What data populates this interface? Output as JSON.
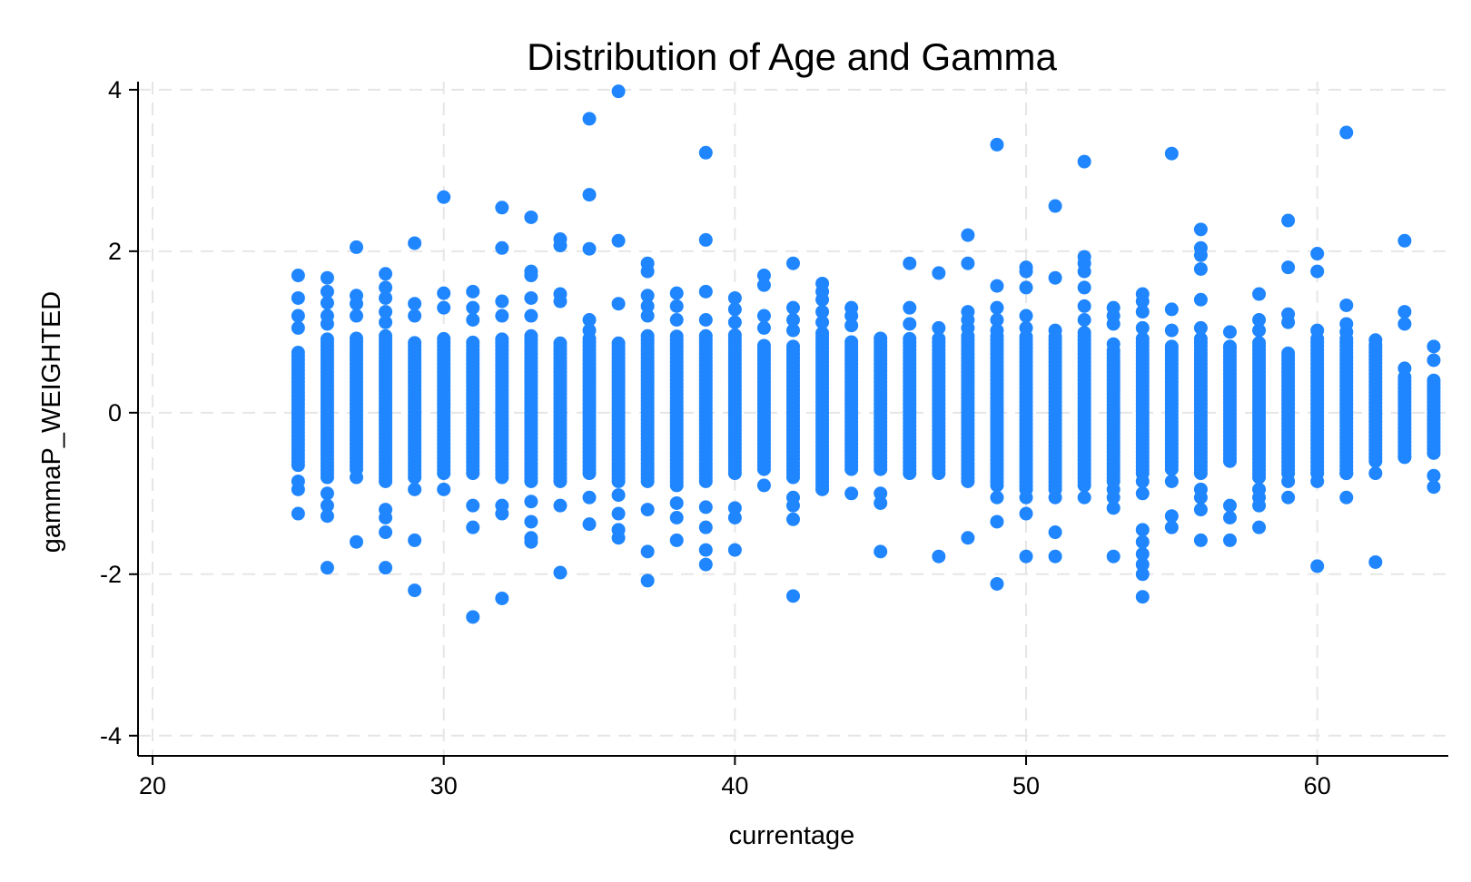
{
  "chart_data": {
    "type": "scatter",
    "title": "Distribution of Age and Gamma",
    "xlabel": "currentage",
    "ylabel": "gammaP_WEIGHTED",
    "xlim": [
      19.5,
      64.5
    ],
    "ylim": [
      -4.25,
      4.1
    ],
    "xticks": [
      20,
      30,
      40,
      50,
      60
    ],
    "yticks": [
      -4,
      -2,
      0,
      2,
      4
    ],
    "grid": true,
    "marker_color": "#1f86ff",
    "ages": [
      25,
      26,
      27,
      28,
      29,
      30,
      31,
      32,
      33,
      34,
      35,
      36,
      37,
      38,
      39,
      40,
      41,
      42,
      43,
      44,
      45,
      46,
      47,
      48,
      49,
      50,
      51,
      52,
      53,
      54,
      55,
      56,
      57,
      58,
      59,
      60,
      61,
      62,
      63,
      64
    ],
    "dense_ranges": [
      [
        -0.65,
        0.75
      ],
      [
        -0.8,
        0.95
      ],
      [
        -0.7,
        0.95
      ],
      [
        -0.85,
        0.95
      ],
      [
        -0.8,
        0.9
      ],
      [
        -0.75,
        0.95
      ],
      [
        -0.75,
        0.9
      ],
      [
        -0.8,
        0.95
      ],
      [
        -0.85,
        0.95
      ],
      [
        -0.85,
        0.9
      ],
      [
        -0.75,
        0.95
      ],
      [
        -0.85,
        0.9
      ],
      [
        -0.85,
        0.95
      ],
      [
        -0.9,
        0.95
      ],
      [
        -0.85,
        0.95
      ],
      [
        -0.75,
        1.0
      ],
      [
        -0.7,
        0.85
      ],
      [
        -0.8,
        0.85
      ],
      [
        -0.95,
        1.0
      ],
      [
        -0.7,
        0.9
      ],
      [
        -0.7,
        0.95
      ],
      [
        -0.75,
        0.95
      ],
      [
        -0.75,
        0.95
      ],
      [
        -0.85,
        0.95
      ],
      [
        -0.9,
        0.95
      ],
      [
        -0.95,
        0.95
      ],
      [
        -0.95,
        0.95
      ],
      [
        -0.9,
        1.0
      ],
      [
        -0.85,
        0.8
      ],
      [
        -0.75,
        0.95
      ],
      [
        -0.7,
        0.8
      ],
      [
        -0.75,
        0.95
      ],
      [
        -0.6,
        0.8
      ],
      [
        -0.8,
        0.9
      ],
      [
        -0.75,
        0.75
      ],
      [
        -0.75,
        0.95
      ],
      [
        -0.75,
        0.95
      ],
      [
        -0.6,
        0.85
      ],
      [
        -0.55,
        0.45
      ],
      [
        -0.5,
        0.4
      ]
    ],
    "outliers": [
      [
        25,
        1.7
      ],
      [
        25,
        1.42
      ],
      [
        25,
        1.2
      ],
      [
        25,
        1.05
      ],
      [
        25,
        -0.85
      ],
      [
        25,
        -0.95
      ],
      [
        25,
        -1.25
      ],
      [
        26,
        1.67
      ],
      [
        26,
        1.5
      ],
      [
        26,
        1.36
      ],
      [
        26,
        1.2
      ],
      [
        26,
        1.1
      ],
      [
        26,
        -1.0
      ],
      [
        26,
        -1.15
      ],
      [
        26,
        -1.28
      ],
      [
        26,
        -1.92
      ],
      [
        27,
        2.05
      ],
      [
        27,
        1.45
      ],
      [
        27,
        1.35
      ],
      [
        27,
        1.2
      ],
      [
        27,
        -0.8
      ],
      [
        27,
        -1.6
      ],
      [
        28,
        1.72
      ],
      [
        28,
        1.55
      ],
      [
        28,
        1.42
      ],
      [
        28,
        1.25
      ],
      [
        28,
        1.12
      ],
      [
        28,
        -1.2
      ],
      [
        28,
        -1.3
      ],
      [
        28,
        -1.48
      ],
      [
        28,
        -1.92
      ],
      [
        29,
        2.1
      ],
      [
        29,
        1.35
      ],
      [
        29,
        1.2
      ],
      [
        29,
        -0.95
      ],
      [
        29,
        -1.58
      ],
      [
        29,
        -2.2
      ],
      [
        30,
        2.67
      ],
      [
        30,
        1.48
      ],
      [
        30,
        1.3
      ],
      [
        30,
        -0.95
      ],
      [
        31,
        1.5
      ],
      [
        31,
        1.3
      ],
      [
        31,
        1.15
      ],
      [
        31,
        -1.15
      ],
      [
        31,
        -1.42
      ],
      [
        31,
        -2.53
      ],
      [
        32,
        2.54
      ],
      [
        32,
        2.04
      ],
      [
        32,
        1.38
      ],
      [
        32,
        1.2
      ],
      [
        32,
        -1.15
      ],
      [
        32,
        -1.25
      ],
      [
        32,
        -2.3
      ],
      [
        33,
        2.42
      ],
      [
        33,
        1.75
      ],
      [
        33,
        1.7
      ],
      [
        33,
        1.42
      ],
      [
        33,
        1.2
      ],
      [
        33,
        -1.1
      ],
      [
        33,
        -1.35
      ],
      [
        33,
        -1.55
      ],
      [
        33,
        -1.6
      ],
      [
        34,
        2.15
      ],
      [
        34,
        2.07
      ],
      [
        34,
        1.47
      ],
      [
        34,
        1.38
      ],
      [
        34,
        -1.15
      ],
      [
        34,
        -1.98
      ],
      [
        35,
        3.64
      ],
      [
        35,
        2.7
      ],
      [
        35,
        2.03
      ],
      [
        35,
        1.15
      ],
      [
        35,
        1.02
      ],
      [
        35,
        -1.05
      ],
      [
        35,
        -1.38
      ],
      [
        36,
        3.98
      ],
      [
        36,
        2.13
      ],
      [
        36,
        1.35
      ],
      [
        36,
        -1.02
      ],
      [
        36,
        -1.25
      ],
      [
        36,
        -1.45
      ],
      [
        36,
        -1.55
      ],
      [
        37,
        1.85
      ],
      [
        37,
        1.75
      ],
      [
        37,
        1.45
      ],
      [
        37,
        1.32
      ],
      [
        37,
        1.2
      ],
      [
        37,
        -1.2
      ],
      [
        37,
        -1.72
      ],
      [
        37,
        -2.08
      ],
      [
        38,
        1.48
      ],
      [
        38,
        1.32
      ],
      [
        38,
        1.15
      ],
      [
        38,
        -1.12
      ],
      [
        38,
        -1.3
      ],
      [
        38,
        -1.58
      ],
      [
        39,
        3.22
      ],
      [
        39,
        2.14
      ],
      [
        39,
        1.5
      ],
      [
        39,
        1.15
      ],
      [
        39,
        -1.17
      ],
      [
        39,
        -1.42
      ],
      [
        39,
        -1.7
      ],
      [
        39,
        -1.88
      ],
      [
        40,
        1.42
      ],
      [
        40,
        1.28
      ],
      [
        40,
        1.12
      ],
      [
        40,
        -1.18
      ],
      [
        40,
        -1.3
      ],
      [
        40,
        -1.7
      ],
      [
        41,
        1.7
      ],
      [
        41,
        1.58
      ],
      [
        41,
        1.2
      ],
      [
        41,
        1.05
      ],
      [
        41,
        -0.9
      ],
      [
        42,
        1.85
      ],
      [
        42,
        1.3
      ],
      [
        42,
        1.15
      ],
      [
        42,
        1.02
      ],
      [
        42,
        -1.05
      ],
      [
        42,
        -1.15
      ],
      [
        42,
        -1.32
      ],
      [
        42,
        -2.27
      ],
      [
        43,
        1.6
      ],
      [
        43,
        1.5
      ],
      [
        43,
        1.4
      ],
      [
        43,
        1.25
      ],
      [
        43,
        1.12
      ],
      [
        44,
        1.3
      ],
      [
        44,
        1.2
      ],
      [
        44,
        1.08
      ],
      [
        44,
        -1.0
      ],
      [
        45,
        -1.0
      ],
      [
        45,
        -1.12
      ],
      [
        45,
        -1.72
      ],
      [
        46,
        1.85
      ],
      [
        46,
        1.3
      ],
      [
        46,
        1.1
      ],
      [
        47,
        1.73
      ],
      [
        47,
        1.05
      ],
      [
        47,
        -1.78
      ],
      [
        48,
        2.2
      ],
      [
        48,
        1.85
      ],
      [
        48,
        1.25
      ],
      [
        48,
        1.15
      ],
      [
        48,
        1.05
      ],
      [
        48,
        -1.55
      ],
      [
        49,
        3.32
      ],
      [
        49,
        1.57
      ],
      [
        49,
        1.3
      ],
      [
        49,
        1.15
      ],
      [
        49,
        1.02
      ],
      [
        49,
        -1.05
      ],
      [
        49,
        -1.35
      ],
      [
        49,
        -2.12
      ],
      [
        50,
        1.8
      ],
      [
        50,
        1.75
      ],
      [
        50,
        1.55
      ],
      [
        50,
        1.2
      ],
      [
        50,
        1.05
      ],
      [
        50,
        -1.05
      ],
      [
        50,
        -1.25
      ],
      [
        50,
        -1.78
      ],
      [
        51,
        2.56
      ],
      [
        51,
        1.67
      ],
      [
        51,
        1.02
      ],
      [
        51,
        -1.05
      ],
      [
        51,
        -1.48
      ],
      [
        51,
        -1.78
      ],
      [
        52,
        3.11
      ],
      [
        52,
        1.93
      ],
      [
        52,
        1.85
      ],
      [
        52,
        1.75
      ],
      [
        52,
        1.55
      ],
      [
        52,
        1.32
      ],
      [
        52,
        1.15
      ],
      [
        52,
        -1.05
      ],
      [
        53,
        1.3
      ],
      [
        53,
        1.2
      ],
      [
        53,
        1.1
      ],
      [
        53,
        0.85
      ],
      [
        53,
        -0.95
      ],
      [
        53,
        -1.05
      ],
      [
        53,
        -1.18
      ],
      [
        53,
        -1.78
      ],
      [
        54,
        1.47
      ],
      [
        54,
        1.38
      ],
      [
        54,
        1.25
      ],
      [
        54,
        1.05
      ],
      [
        54,
        -0.85
      ],
      [
        54,
        -1.0
      ],
      [
        54,
        -1.45
      ],
      [
        54,
        -1.6
      ],
      [
        54,
        -1.75
      ],
      [
        54,
        -1.88
      ],
      [
        54,
        -2.0
      ],
      [
        54,
        -2.28
      ],
      [
        55,
        3.21
      ],
      [
        55,
        1.28
      ],
      [
        55,
        1.02
      ],
      [
        55,
        0.82
      ],
      [
        55,
        -0.85
      ],
      [
        55,
        -1.28
      ],
      [
        55,
        -1.42
      ],
      [
        56,
        2.27
      ],
      [
        56,
        2.04
      ],
      [
        56,
        1.95
      ],
      [
        56,
        1.78
      ],
      [
        56,
        1.4
      ],
      [
        56,
        1.05
      ],
      [
        56,
        -0.95
      ],
      [
        56,
        -1.05
      ],
      [
        56,
        -1.2
      ],
      [
        56,
        -1.58
      ],
      [
        57,
        1.0
      ],
      [
        57,
        0.82
      ],
      [
        57,
        -1.15
      ],
      [
        57,
        -1.3
      ],
      [
        57,
        -1.58
      ],
      [
        58,
        1.47
      ],
      [
        58,
        1.15
      ],
      [
        58,
        1.02
      ],
      [
        58,
        -0.95
      ],
      [
        58,
        -1.05
      ],
      [
        58,
        -1.15
      ],
      [
        58,
        -1.42
      ],
      [
        59,
        2.38
      ],
      [
        59,
        1.8
      ],
      [
        59,
        1.22
      ],
      [
        59,
        1.12
      ],
      [
        59,
        -0.85
      ],
      [
        59,
        -1.05
      ],
      [
        60,
        1.97
      ],
      [
        60,
        1.75
      ],
      [
        60,
        1.02
      ],
      [
        60,
        -0.85
      ],
      [
        60,
        -1.9
      ],
      [
        61,
        3.47
      ],
      [
        61,
        1.33
      ],
      [
        61,
        1.1
      ],
      [
        61,
        1.0
      ],
      [
        61,
        -0.75
      ],
      [
        61,
        -1.05
      ],
      [
        62,
        0.9
      ],
      [
        62,
        -0.75
      ],
      [
        62,
        -1.85
      ],
      [
        63,
        2.13
      ],
      [
        63,
        1.25
      ],
      [
        63,
        1.1
      ],
      [
        63,
        0.55
      ],
      [
        63,
        -0.55
      ],
      [
        64,
        0.82
      ],
      [
        64,
        0.65
      ],
      [
        64,
        -0.78
      ],
      [
        64,
        -0.92
      ]
    ]
  }
}
